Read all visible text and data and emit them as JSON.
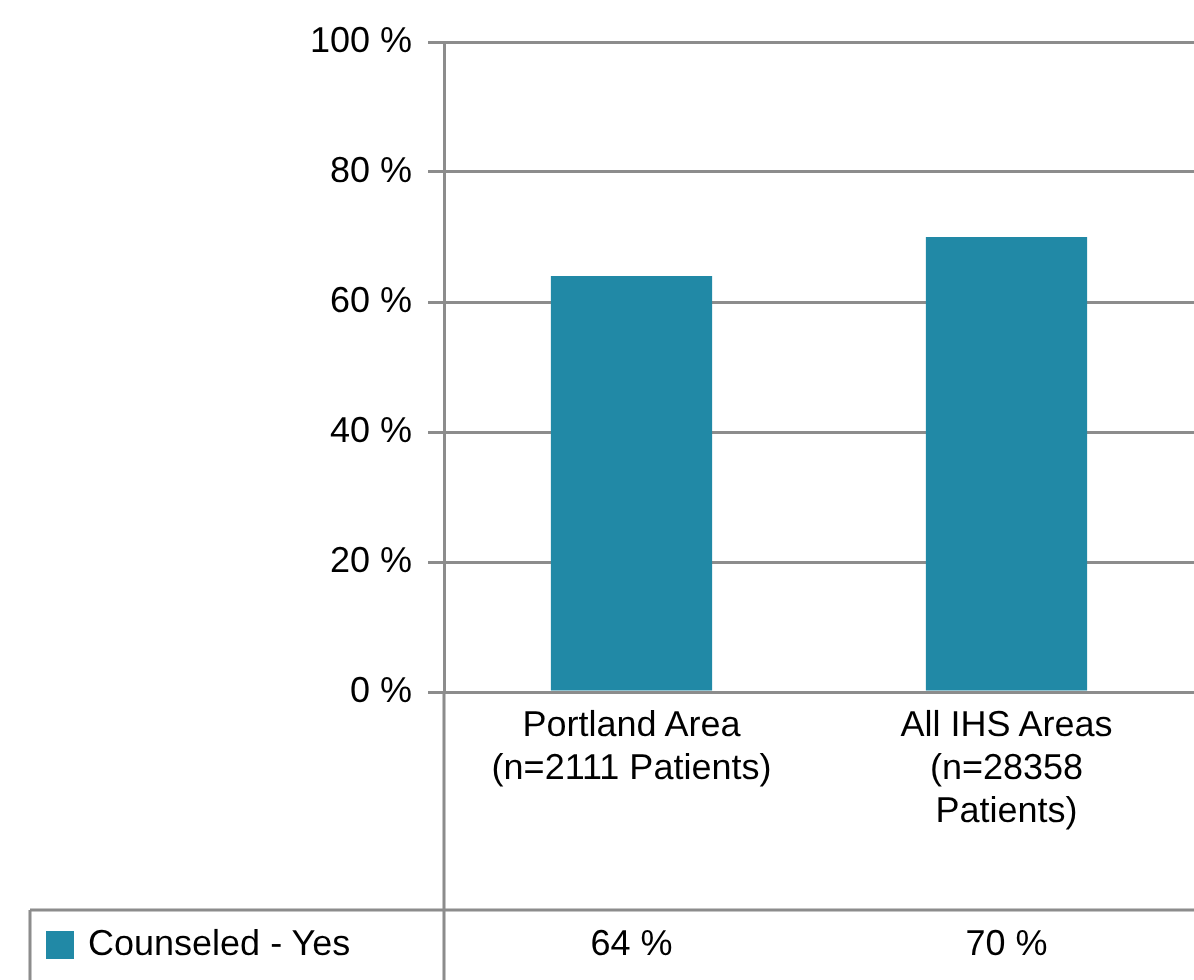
{
  "chart_data": {
    "type": "bar",
    "categories": [
      "Portland Area (n=2111 Patients)",
      "All IHS Areas (n=28358 Patients)"
    ],
    "series": [
      {
        "name": "Counseled - Yes",
        "color": "#2189a6",
        "values": [
          64,
          70
        ],
        "value_labels": [
          "64 %",
          "70 %"
        ]
      }
    ],
    "ylim": [
      0,
      100
    ],
    "yticks": [
      {
        "value": 0,
        "label": "0 %"
      },
      {
        "value": 20,
        "label": "20 %"
      },
      {
        "value": 40,
        "label": "40 %"
      },
      {
        "value": 60,
        "label": "60 %"
      },
      {
        "value": 80,
        "label": "80 %"
      },
      {
        "value": 100,
        "label": "100 %"
      }
    ],
    "grid": "y",
    "legend": "bottom left"
  }
}
